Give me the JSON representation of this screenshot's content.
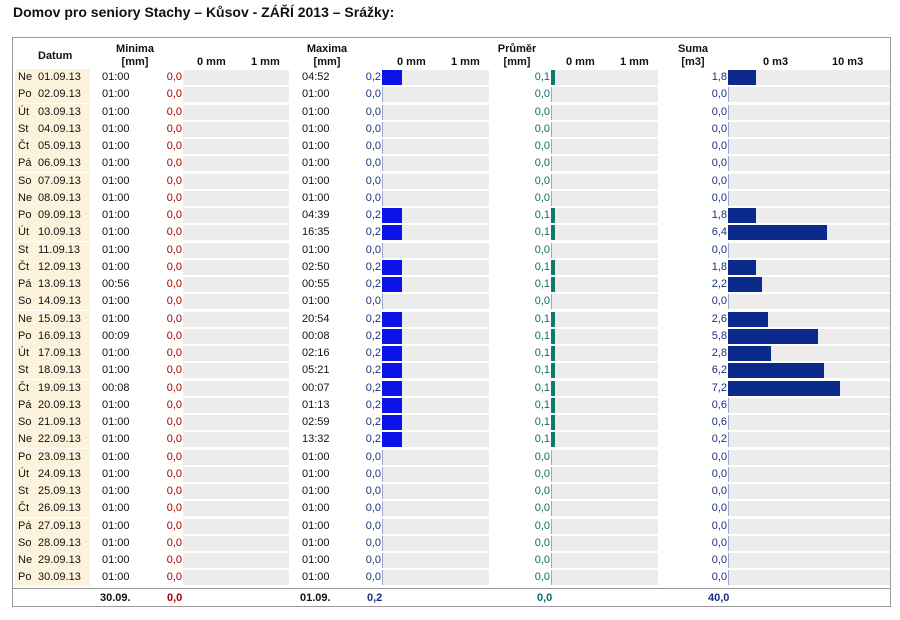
{
  "title": "Domov pro seniory Stachy – Kůsov - ZÁŘÍ 2013 – Srážky:",
  "headers": {
    "datum": "Datum",
    "minima": "Minima",
    "minima_unit": "[mm]",
    "maxima": "Maxima",
    "maxima_unit": "[mm]",
    "prumer": "Průměr",
    "prumer_unit": "[mm]",
    "suma": "Suma",
    "suma_unit": "[m3]",
    "mm_ticks": [
      "0 mm",
      "1 mm"
    ],
    "m3_ticks": [
      "0 m3",
      "10 m3"
    ]
  },
  "chart_data": {
    "type": "table",
    "columns": [
      "Datum",
      "Minima čas",
      "Minima [mm]",
      "Maxima čas",
      "Maxima [mm]",
      "Průměr [mm]",
      "Suma [m3]"
    ],
    "scales": {
      "mm": [
        0,
        1
      ],
      "m3": [
        0,
        10
      ]
    },
    "rows": [
      {
        "day": "Ne",
        "date": "01.09.13",
        "min_time": "01:00",
        "min": "0,0",
        "max_time": "04:52",
        "max": "0,2",
        "avg": "0,1",
        "sum": "1,8"
      },
      {
        "day": "Po",
        "date": "02.09.13",
        "min_time": "01:00",
        "min": "0,0",
        "max_time": "01:00",
        "max": "0,0",
        "avg": "0,0",
        "sum": "0,0"
      },
      {
        "day": "Út",
        "date": "03.09.13",
        "min_time": "01:00",
        "min": "0,0",
        "max_time": "01:00",
        "max": "0,0",
        "avg": "0,0",
        "sum": "0,0"
      },
      {
        "day": "St",
        "date": "04.09.13",
        "min_time": "01:00",
        "min": "0,0",
        "max_time": "01:00",
        "max": "0,0",
        "avg": "0,0",
        "sum": "0,0"
      },
      {
        "day": "Čt",
        "date": "05.09.13",
        "min_time": "01:00",
        "min": "0,0",
        "max_time": "01:00",
        "max": "0,0",
        "avg": "0,0",
        "sum": "0,0"
      },
      {
        "day": "Pá",
        "date": "06.09.13",
        "min_time": "01:00",
        "min": "0,0",
        "max_time": "01:00",
        "max": "0,0",
        "avg": "0,0",
        "sum": "0,0"
      },
      {
        "day": "So",
        "date": "07.09.13",
        "min_time": "01:00",
        "min": "0,0",
        "max_time": "01:00",
        "max": "0,0",
        "avg": "0,0",
        "sum": "0,0"
      },
      {
        "day": "Ne",
        "date": "08.09.13",
        "min_time": "01:00",
        "min": "0,0",
        "max_time": "01:00",
        "max": "0,0",
        "avg": "0,0",
        "sum": "0,0"
      },
      {
        "day": "Po",
        "date": "09.09.13",
        "min_time": "01:00",
        "min": "0,0",
        "max_time": "04:39",
        "max": "0,2",
        "avg": "0,1",
        "sum": "1,8"
      },
      {
        "day": "Út",
        "date": "10.09.13",
        "min_time": "01:00",
        "min": "0,0",
        "max_time": "16:35",
        "max": "0,2",
        "avg": "0,1",
        "sum": "6,4"
      },
      {
        "day": "St",
        "date": "11.09.13",
        "min_time": "01:00",
        "min": "0,0",
        "max_time": "01:00",
        "max": "0,0",
        "avg": "0,0",
        "sum": "0,0"
      },
      {
        "day": "Čt",
        "date": "12.09.13",
        "min_time": "01:00",
        "min": "0,0",
        "max_time": "02:50",
        "max": "0,2",
        "avg": "0,1",
        "sum": "1,8"
      },
      {
        "day": "Pá",
        "date": "13.09.13",
        "min_time": "00:56",
        "min": "0,0",
        "max_time": "00:55",
        "max": "0,2",
        "avg": "0,1",
        "sum": "2,2"
      },
      {
        "day": "So",
        "date": "14.09.13",
        "min_time": "01:00",
        "min": "0,0",
        "max_time": "01:00",
        "max": "0,0",
        "avg": "0,0",
        "sum": "0,0"
      },
      {
        "day": "Ne",
        "date": "15.09.13",
        "min_time": "01:00",
        "min": "0,0",
        "max_time": "20:54",
        "max": "0,2",
        "avg": "0,1",
        "sum": "2,6"
      },
      {
        "day": "Po",
        "date": "16.09.13",
        "min_time": "00:09",
        "min": "0,0",
        "max_time": "00:08",
        "max": "0,2",
        "avg": "0,1",
        "sum": "5,8"
      },
      {
        "day": "Út",
        "date": "17.09.13",
        "min_time": "01:00",
        "min": "0,0",
        "max_time": "02:16",
        "max": "0,2",
        "avg": "0,1",
        "sum": "2,8"
      },
      {
        "day": "St",
        "date": "18.09.13",
        "min_time": "01:00",
        "min": "0,0",
        "max_time": "05:21",
        "max": "0,2",
        "avg": "0,1",
        "sum": "6,2"
      },
      {
        "day": "Čt",
        "date": "19.09.13",
        "min_time": "00:08",
        "min": "0,0",
        "max_time": "00:07",
        "max": "0,2",
        "avg": "0,1",
        "sum": "7,2"
      },
      {
        "day": "Pá",
        "date": "20.09.13",
        "min_time": "01:00",
        "min": "0,0",
        "max_time": "01:13",
        "max": "0,2",
        "avg": "0,1",
        "sum": "0,6"
      },
      {
        "day": "So",
        "date": "21.09.13",
        "min_time": "01:00",
        "min": "0,0",
        "max_time": "02:59",
        "max": "0,2",
        "avg": "0,1",
        "sum": "0,6"
      },
      {
        "day": "Ne",
        "date": "22.09.13",
        "min_time": "01:00",
        "min": "0,0",
        "max_time": "13:32",
        "max": "0,2",
        "avg": "0,1",
        "sum": "0,2"
      },
      {
        "day": "Po",
        "date": "23.09.13",
        "min_time": "01:00",
        "min": "0,0",
        "max_time": "01:00",
        "max": "0,0",
        "avg": "0,0",
        "sum": "0,0"
      },
      {
        "day": "Út",
        "date": "24.09.13",
        "min_time": "01:00",
        "min": "0,0",
        "max_time": "01:00",
        "max": "0,0",
        "avg": "0,0",
        "sum": "0,0"
      },
      {
        "day": "St",
        "date": "25.09.13",
        "min_time": "01:00",
        "min": "0,0",
        "max_time": "01:00",
        "max": "0,0",
        "avg": "0,0",
        "sum": "0,0"
      },
      {
        "day": "Čt",
        "date": "26.09.13",
        "min_time": "01:00",
        "min": "0,0",
        "max_time": "01:00",
        "max": "0,0",
        "avg": "0,0",
        "sum": "0,0"
      },
      {
        "day": "Pá",
        "date": "27.09.13",
        "min_time": "01:00",
        "min": "0,0",
        "max_time": "01:00",
        "max": "0,0",
        "avg": "0,0",
        "sum": "0,0"
      },
      {
        "day": "So",
        "date": "28.09.13",
        "min_time": "01:00",
        "min": "0,0",
        "max_time": "01:00",
        "max": "0,0",
        "avg": "0,0",
        "sum": "0,0"
      },
      {
        "day": "Ne",
        "date": "29.09.13",
        "min_time": "01:00",
        "min": "0,0",
        "max_time": "01:00",
        "max": "0,0",
        "avg": "0,0",
        "sum": "0,0"
      },
      {
        "day": "Po",
        "date": "30.09.13",
        "min_time": "01:00",
        "min": "0,0",
        "max_time": "01:00",
        "max": "0,0",
        "avg": "0,0",
        "sum": "0,0"
      }
    ],
    "totals": {
      "min_date": "30.09.",
      "min": "0,0",
      "max_date": "01.09.",
      "max": "0,2",
      "avg": "0,0",
      "sum": "40,0"
    }
  },
  "colors": {
    "max_bar": "#0a14e6",
    "avg_bar": "#0f7a6c",
    "sum_bar": "#0b2a8c",
    "min_value": "#a00000"
  }
}
